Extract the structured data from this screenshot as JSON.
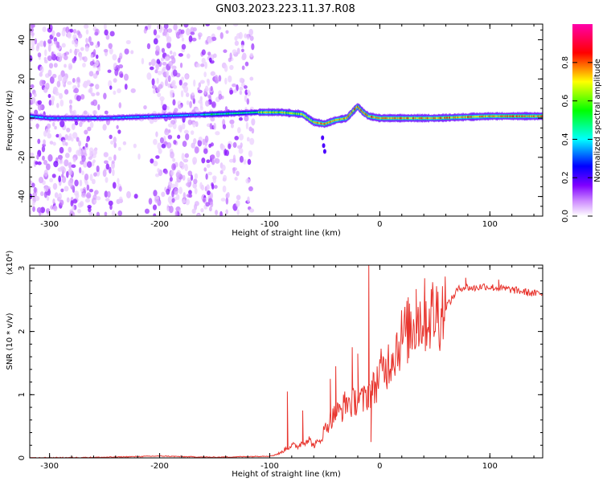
{
  "title": "GN03.2023.223.11.37.R08",
  "chart_data": [
    {
      "type": "heatmap",
      "title": "GN03.2023.223.11.37.R08",
      "xlabel": "Height of straight line (km)",
      "ylabel": "Frequency (Hz)",
      "xlim": [
        -318,
        148
      ],
      "ylim": [
        -50,
        48
      ],
      "xticks": [
        "-300",
        "-200",
        "-100",
        "0",
        "100"
      ],
      "yticks": [
        "-40",
        "-20",
        "0",
        "20",
        "40"
      ],
      "grid": false,
      "colorbar": {
        "label": "Normalized spectral amplitude",
        "range": [
          0,
          1
        ],
        "ticks": [
          "0.0",
          "0.2",
          "0.4",
          "0.6",
          "0.8"
        ],
        "colors": [
          "#ffffff",
          "#8800ff",
          "#0000ff",
          "#00ffff",
          "#00ff00",
          "#ffff00",
          "#ff0000",
          "#ff00aa"
        ]
      },
      "description_ridge": {
        "x": [
          -318,
          -300,
          -250,
          -200,
          -150,
          -110,
          -90,
          -70,
          -60,
          -50,
          -40,
          -30,
          -20,
          -15,
          -10,
          0,
          20,
          50,
          100,
          148
        ],
        "freq_hz": [
          1,
          0,
          0,
          1,
          2,
          3,
          3,
          2,
          -2,
          -3,
          -1,
          0,
          6,
          3,
          1,
          0,
          0,
          0,
          1,
          1
        ]
      }
    },
    {
      "type": "line",
      "xlabel": "Height of straight line (km)",
      "ylabel": "SNR (10 * v/v)",
      "y_scale_label": "(x10⁴)",
      "xlim": [
        -318,
        148
      ],
      "ylim": [
        0,
        3.05
      ],
      "xticks": [
        "-300",
        "-200",
        "-100",
        "0",
        "100"
      ],
      "yticks": [
        "0",
        "1",
        "2",
        "3"
      ],
      "grid": false,
      "series": [
        {
          "color": "#e8352e",
          "x": [
            -318,
            -250,
            -220,
            -200,
            -180,
            -150,
            -120,
            -100,
            -95,
            -90,
            -85,
            -80,
            -75,
            -70,
            -65,
            -60,
            -55,
            -50,
            -45,
            -40,
            -35,
            -30,
            -25,
            -20,
            -15,
            -10,
            -5,
            0,
            5,
            10,
            15,
            20,
            25,
            30,
            35,
            40,
            45,
            50,
            55,
            60,
            65,
            70,
            75,
            80,
            85,
            90,
            95,
            100,
            110,
            120,
            130,
            140,
            148
          ],
          "values": [
            0.0,
            0.01,
            0.02,
            0.03,
            0.02,
            0.01,
            0.02,
            0.03,
            0.05,
            0.08,
            0.15,
            0.2,
            0.18,
            0.25,
            0.3,
            0.2,
            0.25,
            0.45,
            0.6,
            0.7,
            0.75,
            0.9,
            0.85,
            0.95,
            0.9,
            1.05,
            1.1,
            1.35,
            1.4,
            1.6,
            1.75,
            1.9,
            2.0,
            2.1,
            2.2,
            2.25,
            2.25,
            2.3,
            2.3,
            2.4,
            2.5,
            2.65,
            2.7,
            2.7,
            2.68,
            2.7,
            2.72,
            2.7,
            2.68,
            2.66,
            2.63,
            2.6,
            2.6
          ],
          "spikes": [
            {
              "x": -84,
              "value": 1.05
            },
            {
              "x": -70,
              "value": 0.75
            },
            {
              "x": -45,
              "value": 1.25
            },
            {
              "x": -40,
              "value": 1.45
            },
            {
              "x": -25,
              "value": 1.75
            },
            {
              "x": -20,
              "value": 1.65
            },
            {
              "x": -10,
              "value": 3.05
            },
            {
              "x": -8,
              "value": 0.25
            },
            {
              "x": 33,
              "value": 2.67
            },
            {
              "x": 35,
              "value": 2.35
            },
            {
              "x": 78,
              "value": 2.85
            },
            {
              "x": 108,
              "value": 2.82
            }
          ]
        }
      ]
    }
  ]
}
